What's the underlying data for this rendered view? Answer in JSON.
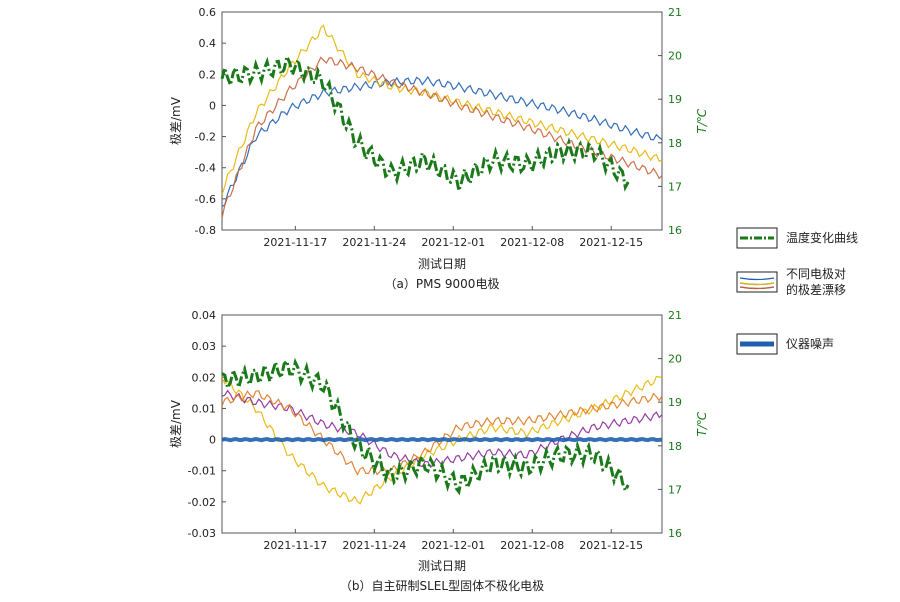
{
  "chart_data": [
    {
      "type": "line",
      "caption": "（a）PMS 9000电极",
      "xlabel": "测试日期",
      "ylabel": "极差/mV",
      "y2label": "T/℃",
      "x_ticks": [
        "2021-11-17",
        "2021-11-24",
        "2021-12-01",
        "2021-12-08",
        "2021-12-15"
      ],
      "ylim": [
        -0.8,
        0.6
      ],
      "y_ticks": [
        "0.6",
        "0.4",
        "0.2",
        "0",
        "-0.2",
        "-0.4",
        "-0.6",
        "-0.8"
      ],
      "y2lim": [
        16,
        21
      ],
      "y2_ticks": [
        "21",
        "20",
        "19",
        "18",
        "17",
        "16"
      ],
      "x": [
        0,
        3,
        6,
        9,
        12,
        15,
        18,
        21,
        24,
        27,
        30,
        33,
        36,
        39
      ],
      "series": [
        {
          "color": "#1f5fb0",
          "axis": "left",
          "values": [
            -0.65,
            -0.2,
            -0.02,
            0.08,
            0.12,
            0.15,
            0.16,
            0.12,
            0.07,
            0.02,
            -0.03,
            -0.09,
            -0.16,
            -0.22
          ]
        },
        {
          "color": "#e8b400",
          "axis": "left",
          "values": [
            -0.55,
            -0.05,
            0.25,
            0.5,
            0.2,
            0.12,
            0.08,
            0.02,
            -0.04,
            -0.1,
            -0.16,
            -0.22,
            -0.28,
            -0.35
          ]
        },
        {
          "color": "#c8603a",
          "axis": "left",
          "values": [
            -0.7,
            -0.15,
            0.1,
            0.3,
            0.24,
            0.15,
            0.08,
            0.0,
            -0.07,
            -0.14,
            -0.22,
            -0.3,
            -0.37,
            -0.45
          ]
        },
        {
          "color": "#1a7a1a",
          "axis": "right",
          "values": [
            19.5,
            19.6,
            19.8,
            19.4,
            18.0,
            17.3,
            17.6,
            17.1,
            17.6,
            17.5,
            17.8,
            17.8,
            17.1,
            null
          ]
        }
      ]
    },
    {
      "type": "line",
      "caption": "（b）自主研制SLEL型固体不极化电极",
      "xlabel": "测试日期",
      "ylabel": "极差/mV",
      "y2label": "T/℃",
      "x_ticks": [
        "2021-11-17",
        "2021-11-24",
        "2021-12-01",
        "2021-12-08",
        "2021-12-15"
      ],
      "ylim": [
        -0.03,
        0.04
      ],
      "y_ticks": [
        "0.04",
        "0.03",
        "0.02",
        "0.01",
        "0",
        "-0.01",
        "-0.02",
        "-0.03"
      ],
      "y2lim": [
        16,
        21
      ],
      "y2_ticks": [
        "21",
        "20",
        "19",
        "18",
        "17",
        "16"
      ],
      "x": [
        0,
        3,
        6,
        9,
        12,
        15,
        18,
        21,
        24,
        27,
        30,
        33,
        36,
        39
      ],
      "series": [
        {
          "color": "#e8b400",
          "axis": "left",
          "values": [
            0.02,
            0.01,
            -0.005,
            -0.015,
            -0.02,
            -0.012,
            -0.005,
            0.0,
            0.004,
            0.002,
            0.006,
            0.01,
            0.015,
            0.02
          ]
        },
        {
          "color": "#8a2a9a",
          "axis": "left",
          "values": [
            0.015,
            0.012,
            0.01,
            0.005,
            0.002,
            -0.005,
            -0.008,
            -0.006,
            -0.004,
            -0.005,
            0.0,
            0.004,
            0.006,
            0.008
          ]
        },
        {
          "color": "#e07820",
          "axis": "left",
          "values": [
            0.012,
            0.015,
            0.01,
            0.0,
            -0.01,
            -0.01,
            -0.004,
            0.004,
            0.006,
            0.006,
            0.008,
            0.01,
            0.012,
            0.014
          ]
        },
        {
          "color": "#1f5fb0",
          "axis": "left",
          "values": [
            0,
            0,
            0,
            0,
            0,
            0,
            0,
            0,
            0,
            0,
            0,
            0,
            0,
            0
          ]
        },
        {
          "color": "#1a7a1a",
          "axis": "right",
          "values": [
            19.5,
            19.6,
            19.8,
            19.4,
            18.0,
            17.3,
            17.6,
            17.1,
            17.6,
            17.5,
            17.8,
            17.8,
            17.1,
            null
          ]
        }
      ]
    }
  ],
  "legend": {
    "items": [
      {
        "label": "温度变化曲线",
        "color": "#1a7a1a"
      },
      {
        "label": "不同电极对\n的极差漂移",
        "color": "#1f5fb0"
      },
      {
        "label": "仪器噪声",
        "color": "#1f5fb0"
      }
    ]
  }
}
